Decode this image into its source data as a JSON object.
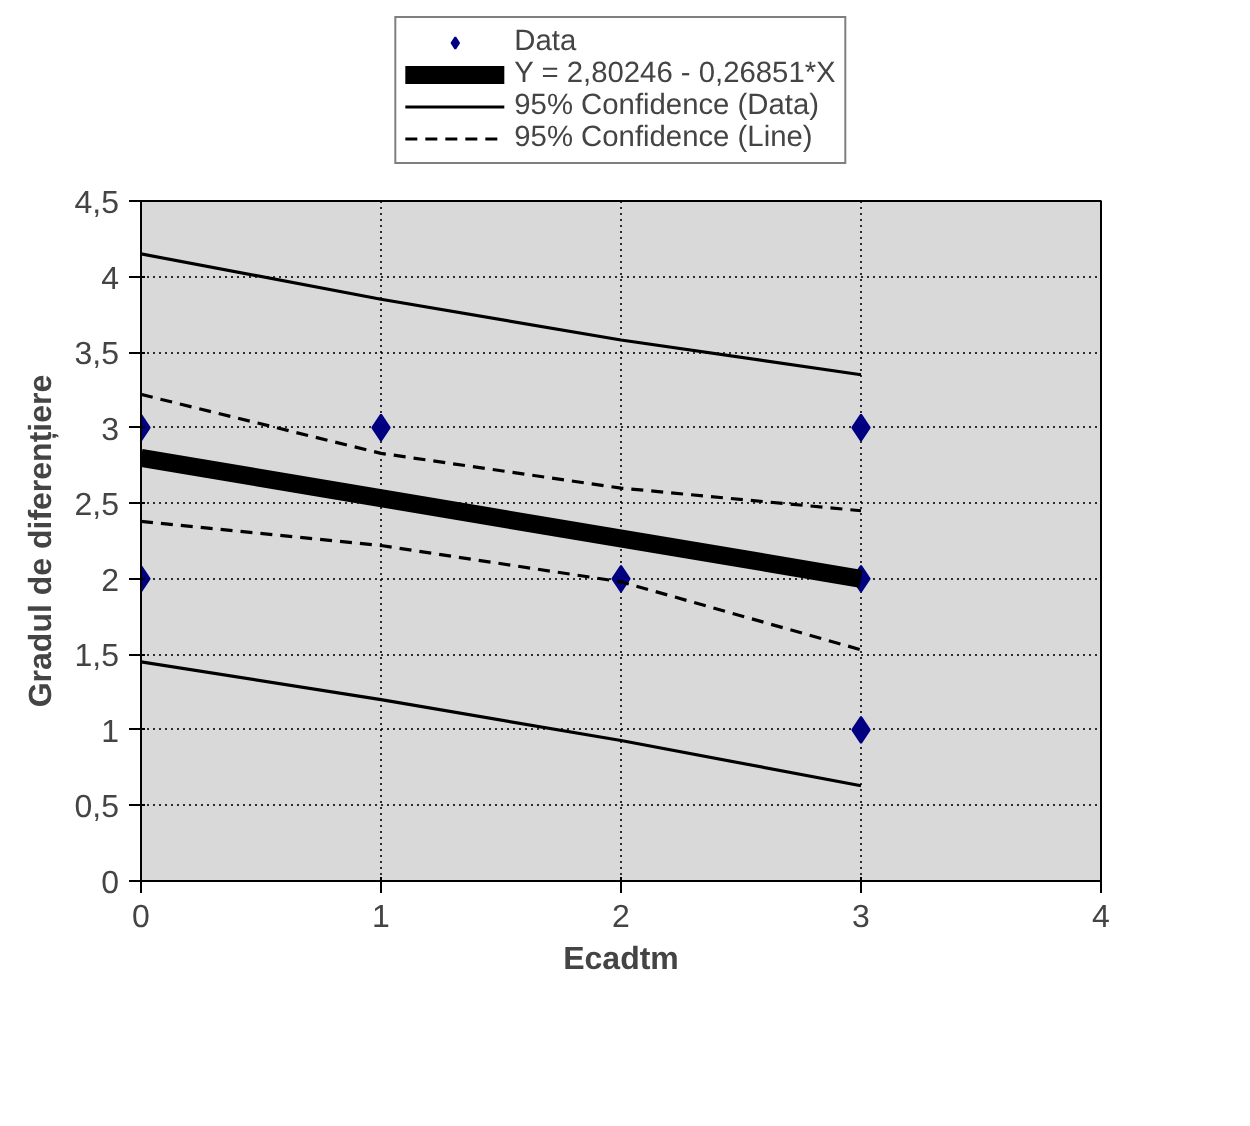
{
  "chart_data": {
    "type": "line",
    "xlabel": "Ecadtm",
    "ylabel": "Gradul de diferențiere",
    "xlim": [
      0,
      4
    ],
    "xticks": [
      0,
      1,
      2,
      3,
      4
    ],
    "ylim": [
      0,
      4.5
    ],
    "yticks": [
      0,
      {
        "value": 0.5,
        "label": "0,5"
      },
      1,
      {
        "value": 1.5,
        "label": "1,5"
      },
      2,
      {
        "value": 2.5,
        "label": "2,5"
      },
      3,
      {
        "value": 3.5,
        "label": "3,5"
      },
      4,
      {
        "value": 4.5,
        "label": "4,5"
      }
    ],
    "grid": true,
    "legend": "top",
    "series": [
      {
        "name": "Data",
        "type": "scatter",
        "marker": "diamond",
        "color": "#000080",
        "x": [
          0,
          0,
          1,
          2,
          3,
          3,
          3
        ],
        "values": [
          3,
          2,
          3,
          2,
          3,
          2,
          1
        ]
      },
      {
        "name": "Y = 2,80246 - 0,26851*X",
        "line_style": "solid",
        "color": "#000000",
        "x": [
          0,
          3
        ],
        "values": [
          2.8,
          2.0
        ]
      },
      {
        "name": "95% Confidence (Data)",
        "line_style": "solid",
        "color": "#000000",
        "x": [
          0,
          1,
          2,
          3
        ],
        "values": [
          4.15,
          3.85,
          3.58,
          3.35
        ]
      },
      {
        "line_style": "solid",
        "color": "#000000",
        "x": [
          0,
          1,
          2,
          3
        ],
        "values": [
          1.45,
          1.2,
          0.93,
          0.63
        ]
      },
      {
        "name": "95% Confidence (Line)",
        "line_style": "dashed",
        "color": "#000000",
        "x": [
          0,
          1,
          2,
          3
        ],
        "values": [
          3.22,
          2.83,
          2.6,
          2.45
        ]
      },
      {
        "line_style": "dashed",
        "color": "#000000",
        "x": [
          0,
          1,
          2,
          3
        ],
        "values": [
          2.38,
          2.22,
          1.98,
          1.53
        ]
      }
    ]
  }
}
